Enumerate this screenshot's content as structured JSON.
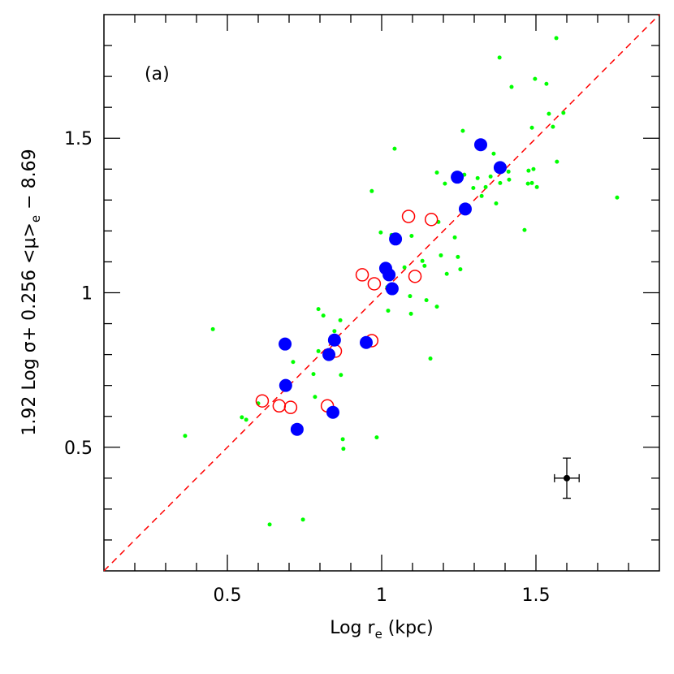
{
  "chart_data": {
    "type": "scatter",
    "annotation": "(a)",
    "xlabel": {
      "main": "Log r",
      "sub": "e",
      "rest": " (kpc)"
    },
    "ylabel": {
      "main": "1.92 Log σ+ 0.256 <μ>",
      "sub": "e",
      "rest": " − 8.69"
    },
    "xlim": [
      0.1,
      1.9
    ],
    "ylim": [
      0.1,
      1.9
    ],
    "xticks": [
      {
        "value": 0.5,
        "label": "0.5"
      },
      1,
      {
        "value": 1.5,
        "label": "1.5"
      }
    ],
    "yticks": [
      {
        "value": 0.5,
        "label": "0.5"
      },
      1,
      {
        "value": 1.5,
        "label": "1.5"
      }
    ],
    "xminorticks": [
      0.2,
      0.3,
      0.4,
      0.6,
      0.7,
      0.8,
      0.9,
      1.1,
      1.2,
      1.3,
      1.4,
      1.6,
      1.7,
      1.8
    ],
    "yminorticks": [
      0.2,
      0.3,
      0.4,
      0.6,
      0.7,
      0.8,
      0.9,
      1.1,
      1.2,
      1.3,
      1.4,
      1.6,
      1.7,
      1.8
    ],
    "reference_line": {
      "x": [
        0.1,
        1.9
      ],
      "y": [
        0.1,
        1.9
      ],
      "color": "#ff0000",
      "dashed": true
    },
    "series": [
      {
        "marker": "dot",
        "color": "#00ff00",
        "x": [
          0.363,
          0.453,
          0.547,
          0.561,
          0.6,
          0.637,
          0.745,
          0.713,
          0.795,
          0.811,
          0.779,
          0.795,
          0.784,
          0.847,
          0.866,
          0.868,
          0.874,
          0.876,
          0.947,
          0.984,
          0.968,
          0.997,
          1.018,
          1.021,
          1.042,
          1.032,
          1.074,
          1.092,
          1.097,
          1.095,
          1.132,
          1.139,
          1.145,
          1.158,
          1.179,
          1.179,
          1.184,
          1.192,
          1.205,
          1.211,
          1.237,
          1.247,
          1.255,
          1.263,
          1.268,
          1.297,
          1.311,
          1.324,
          1.337,
          1.353,
          1.363,
          1.371,
          1.382,
          1.384,
          1.411,
          1.413,
          1.421,
          1.474,
          1.476,
          1.487,
          1.492,
          1.497,
          1.503,
          1.463,
          1.487,
          1.534,
          1.542,
          1.566,
          1.555,
          1.568,
          1.589,
          1.763
        ],
        "values": [
          0.537,
          0.882,
          0.597,
          0.589,
          0.642,
          0.25,
          0.266,
          0.776,
          0.947,
          0.926,
          0.737,
          0.811,
          0.663,
          0.876,
          0.911,
          0.734,
          0.526,
          0.495,
          0.826,
          0.532,
          1.329,
          1.195,
          1.018,
          0.942,
          1.466,
          1.187,
          1.082,
          0.989,
          1.184,
          0.932,
          1.103,
          1.087,
          0.976,
          0.787,
          0.955,
          1.389,
          1.229,
          1.121,
          1.353,
          1.061,
          1.179,
          1.116,
          1.076,
          1.524,
          1.382,
          1.339,
          1.371,
          1.313,
          1.342,
          1.376,
          1.45,
          1.289,
          1.761,
          1.355,
          1.392,
          1.366,
          1.666,
          1.353,
          1.395,
          1.355,
          1.4,
          1.692,
          1.342,
          1.203,
          1.534,
          1.676,
          1.579,
          1.824,
          1.537,
          1.424,
          1.582,
          1.308
        ]
      },
      {
        "marker": "open",
        "color": "#ff0000",
        "x": [
          0.613,
          0.668,
          0.705,
          0.824,
          0.85,
          0.968,
          0.937,
          0.976,
          1.087,
          1.108,
          1.161
        ],
        "values": [
          0.65,
          0.634,
          0.629,
          0.634,
          0.811,
          0.845,
          1.058,
          1.029,
          1.247,
          1.053,
          1.237
        ]
      },
      {
        "marker": "filled",
        "color": "#0000ff",
        "x": [
          0.687,
          0.689,
          0.726,
          0.829,
          0.847,
          0.842,
          0.95,
          1.013,
          1.024,
          1.034,
          1.045,
          1.245,
          1.271,
          1.321,
          1.384
        ],
        "values": [
          0.834,
          0.7,
          0.558,
          0.8,
          0.847,
          0.613,
          0.839,
          1.079,
          1.058,
          1.013,
          1.174,
          1.374,
          1.271,
          1.479,
          1.405
        ]
      },
      {
        "marker": "errorbar",
        "color": "#000000",
        "x": [
          1.6
        ],
        "values": [
          0.4
        ],
        "xerr": [
          0.04
        ],
        "yerr": [
          0.065
        ]
      }
    ]
  }
}
